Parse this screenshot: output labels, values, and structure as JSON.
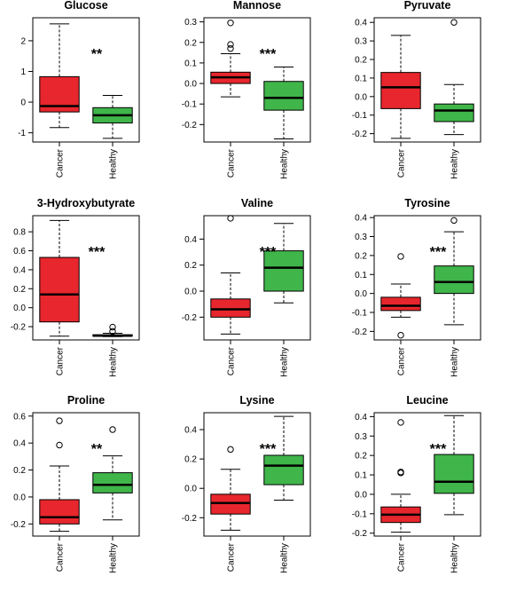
{
  "colors": {
    "cancer": "#e8262d",
    "healthy": "#3fb54a",
    "stroke": "#000000"
  },
  "chart_data": [
    {
      "type": "boxplot",
      "title": "Glucose",
      "significance": "**",
      "categories": [
        "Cancer",
        "Healthy"
      ],
      "yticks": [
        -1,
        0,
        1,
        2
      ],
      "tick_labels": [
        "-1",
        "0",
        "1",
        "2"
      ],
      "ylim": [
        -1.3,
        2.75
      ],
      "boxes": [
        {
          "group": "Cancer",
          "whisker_low": -0.83,
          "q1": -0.32,
          "median": -0.13,
          "q3": 0.83,
          "whisker_high": 2.55,
          "outliers": []
        },
        {
          "group": "Healthy",
          "whisker_low": -1.18,
          "q1": -0.68,
          "median": -0.43,
          "q3": -0.18,
          "whisker_high": 0.22,
          "outliers": []
        }
      ]
    },
    {
      "type": "boxplot",
      "title": "Mannose",
      "significance": "***",
      "categories": [
        "Cancer",
        "Healthy"
      ],
      "yticks": [
        -0.2,
        -0.1,
        0.0,
        0.1,
        0.2,
        0.3
      ],
      "tick_labels": [
        "-0.2",
        "-0.1",
        "0.0",
        "0.1",
        "0.2",
        "0.3"
      ],
      "ylim": [
        -0.285,
        0.32
      ],
      "boxes": [
        {
          "group": "Cancer",
          "whisker_low": -0.065,
          "q1": 0.0,
          "median": 0.03,
          "q3": 0.055,
          "whisker_high": 0.145,
          "outliers": [
            0.17,
            0.19,
            0.295
          ]
        },
        {
          "group": "Healthy",
          "whisker_low": -0.27,
          "q1": -0.13,
          "median": -0.07,
          "q3": 0.01,
          "whisker_high": 0.08,
          "outliers": []
        }
      ]
    },
    {
      "type": "boxplot",
      "title": "Pyruvate",
      "significance": "",
      "categories": [
        "Cancer",
        "Healthy"
      ],
      "yticks": [
        -0.2,
        -0.1,
        0.0,
        0.1,
        0.2,
        0.3,
        0.4
      ],
      "tick_labels": [
        "-0.2",
        "-0.1",
        "0.0",
        "0.1",
        "0.2",
        "0.3",
        "0.4"
      ],
      "ylim": [
        -0.245,
        0.425
      ],
      "boxes": [
        {
          "group": "Cancer",
          "whisker_low": -0.225,
          "q1": -0.065,
          "median": 0.05,
          "q3": 0.13,
          "whisker_high": 0.33,
          "outliers": []
        },
        {
          "group": "Healthy",
          "whisker_low": -0.205,
          "q1": -0.135,
          "median": -0.075,
          "q3": -0.04,
          "whisker_high": 0.065,
          "outliers": [
            0.4
          ]
        }
      ]
    },
    {
      "type": "boxplot",
      "title": "3-Hydroxybutyrate",
      "significance": "***",
      "categories": [
        "Cancer",
        "Healthy"
      ],
      "yticks": [
        -0.2,
        0.0,
        0.2,
        0.4,
        0.6,
        0.8
      ],
      "tick_labels": [
        "-0.2",
        "0.0",
        "0.2",
        "0.4",
        "0.6",
        "0.8"
      ],
      "ylim": [
        -0.34,
        0.97
      ],
      "boxes": [
        {
          "group": "Cancer",
          "whisker_low": -0.3,
          "q1": -0.15,
          "median": 0.14,
          "q3": 0.53,
          "whisker_high": 0.92,
          "outliers": []
        },
        {
          "group": "Healthy",
          "whisker_low": -0.305,
          "q1": -0.3,
          "median": -0.295,
          "q3": -0.285,
          "whisker_high": -0.27,
          "outliers": [
            -0.25,
            -0.205
          ]
        }
      ]
    },
    {
      "type": "boxplot",
      "title": "Valine",
      "significance": "***",
      "categories": [
        "Cancer",
        "Healthy"
      ],
      "yticks": [
        -0.2,
        0.0,
        0.2,
        0.4
      ],
      "tick_labels": [
        "-0.2",
        "0.0",
        "0.2",
        "0.4"
      ],
      "ylim": [
        -0.375,
        0.58
      ],
      "boxes": [
        {
          "group": "Cancer",
          "whisker_low": -0.33,
          "q1": -0.2,
          "median": -0.14,
          "q3": -0.06,
          "whisker_high": 0.14,
          "outliers": [
            0.56
          ]
        },
        {
          "group": "Healthy",
          "whisker_low": -0.09,
          "q1": 0.0,
          "median": 0.18,
          "q3": 0.31,
          "whisker_high": 0.52,
          "outliers": []
        }
      ]
    },
    {
      "type": "boxplot",
      "title": "Tyrosine",
      "significance": "***",
      "categories": [
        "Cancer",
        "Healthy"
      ],
      "yticks": [
        -0.2,
        -0.1,
        0.0,
        0.1,
        0.2,
        0.3,
        0.4
      ],
      "tick_labels": [
        "-0.2",
        "-0.1",
        "0.0",
        "0.1",
        "0.2",
        "0.3",
        "0.4"
      ],
      "ylim": [
        -0.245,
        0.41
      ],
      "boxes": [
        {
          "group": "Cancer",
          "whisker_low": -0.125,
          "q1": -0.09,
          "median": -0.065,
          "q3": -0.02,
          "whisker_high": 0.05,
          "outliers": [
            0.195,
            -0.22
          ]
        },
        {
          "group": "Healthy",
          "whisker_low": -0.165,
          "q1": 0.0,
          "median": 0.06,
          "q3": 0.145,
          "whisker_high": 0.325,
          "outliers": [
            0.385
          ]
        }
      ]
    },
    {
      "type": "boxplot",
      "title": "Proline",
      "significance": "**",
      "categories": [
        "Cancer",
        "Healthy"
      ],
      "yticks": [
        -0.2,
        0.0,
        0.2,
        0.4,
        0.6
      ],
      "tick_labels": [
        "-0.2",
        "0.0",
        "0.2",
        "0.4",
        "0.6"
      ],
      "ylim": [
        -0.29,
        0.625
      ],
      "boxes": [
        {
          "group": "Cancer",
          "whisker_low": -0.255,
          "q1": -0.2,
          "median": -0.15,
          "q3": -0.02,
          "whisker_high": 0.23,
          "outliers": [
            0.385,
            0.565
          ]
        },
        {
          "group": "Healthy",
          "whisker_low": -0.17,
          "q1": 0.03,
          "median": 0.09,
          "q3": 0.18,
          "whisker_high": 0.305,
          "outliers": [
            0.5
          ]
        }
      ]
    },
    {
      "type": "boxplot",
      "title": "Lysine",
      "significance": "***",
      "categories": [
        "Cancer",
        "Healthy"
      ],
      "yticks": [
        -0.2,
        0.0,
        0.2,
        0.4
      ],
      "tick_labels": [
        "-0.2",
        "0.0",
        "0.2",
        "0.4"
      ],
      "ylim": [
        -0.325,
        0.515
      ],
      "boxes": [
        {
          "group": "Cancer",
          "whisker_low": -0.285,
          "q1": -0.175,
          "median": -0.1,
          "q3": -0.04,
          "whisker_high": 0.13,
          "outliers": [
            0.265
          ]
        },
        {
          "group": "Healthy",
          "whisker_low": -0.08,
          "q1": 0.025,
          "median": 0.155,
          "q3": 0.225,
          "whisker_high": 0.49,
          "outliers": []
        }
      ]
    },
    {
      "type": "boxplot",
      "title": "Leucine",
      "significance": "***",
      "categories": [
        "Cancer",
        "Healthy"
      ],
      "yticks": [
        -0.2,
        -0.1,
        0.0,
        0.1,
        0.2,
        0.3,
        0.4
      ],
      "tick_labels": [
        "-0.2",
        "-0.1",
        "0.0",
        "0.1",
        "0.2",
        "0.3",
        "0.4"
      ],
      "ylim": [
        -0.215,
        0.42
      ],
      "boxes": [
        {
          "group": "Cancer",
          "whisker_low": -0.195,
          "q1": -0.145,
          "median": -0.105,
          "q3": -0.065,
          "whisker_high": 0.0,
          "outliers": [
            0.11,
            0.115,
            0.37
          ]
        },
        {
          "group": "Healthy",
          "whisker_low": -0.105,
          "q1": 0.005,
          "median": 0.065,
          "q3": 0.205,
          "whisker_high": 0.405,
          "outliers": []
        }
      ]
    }
  ]
}
